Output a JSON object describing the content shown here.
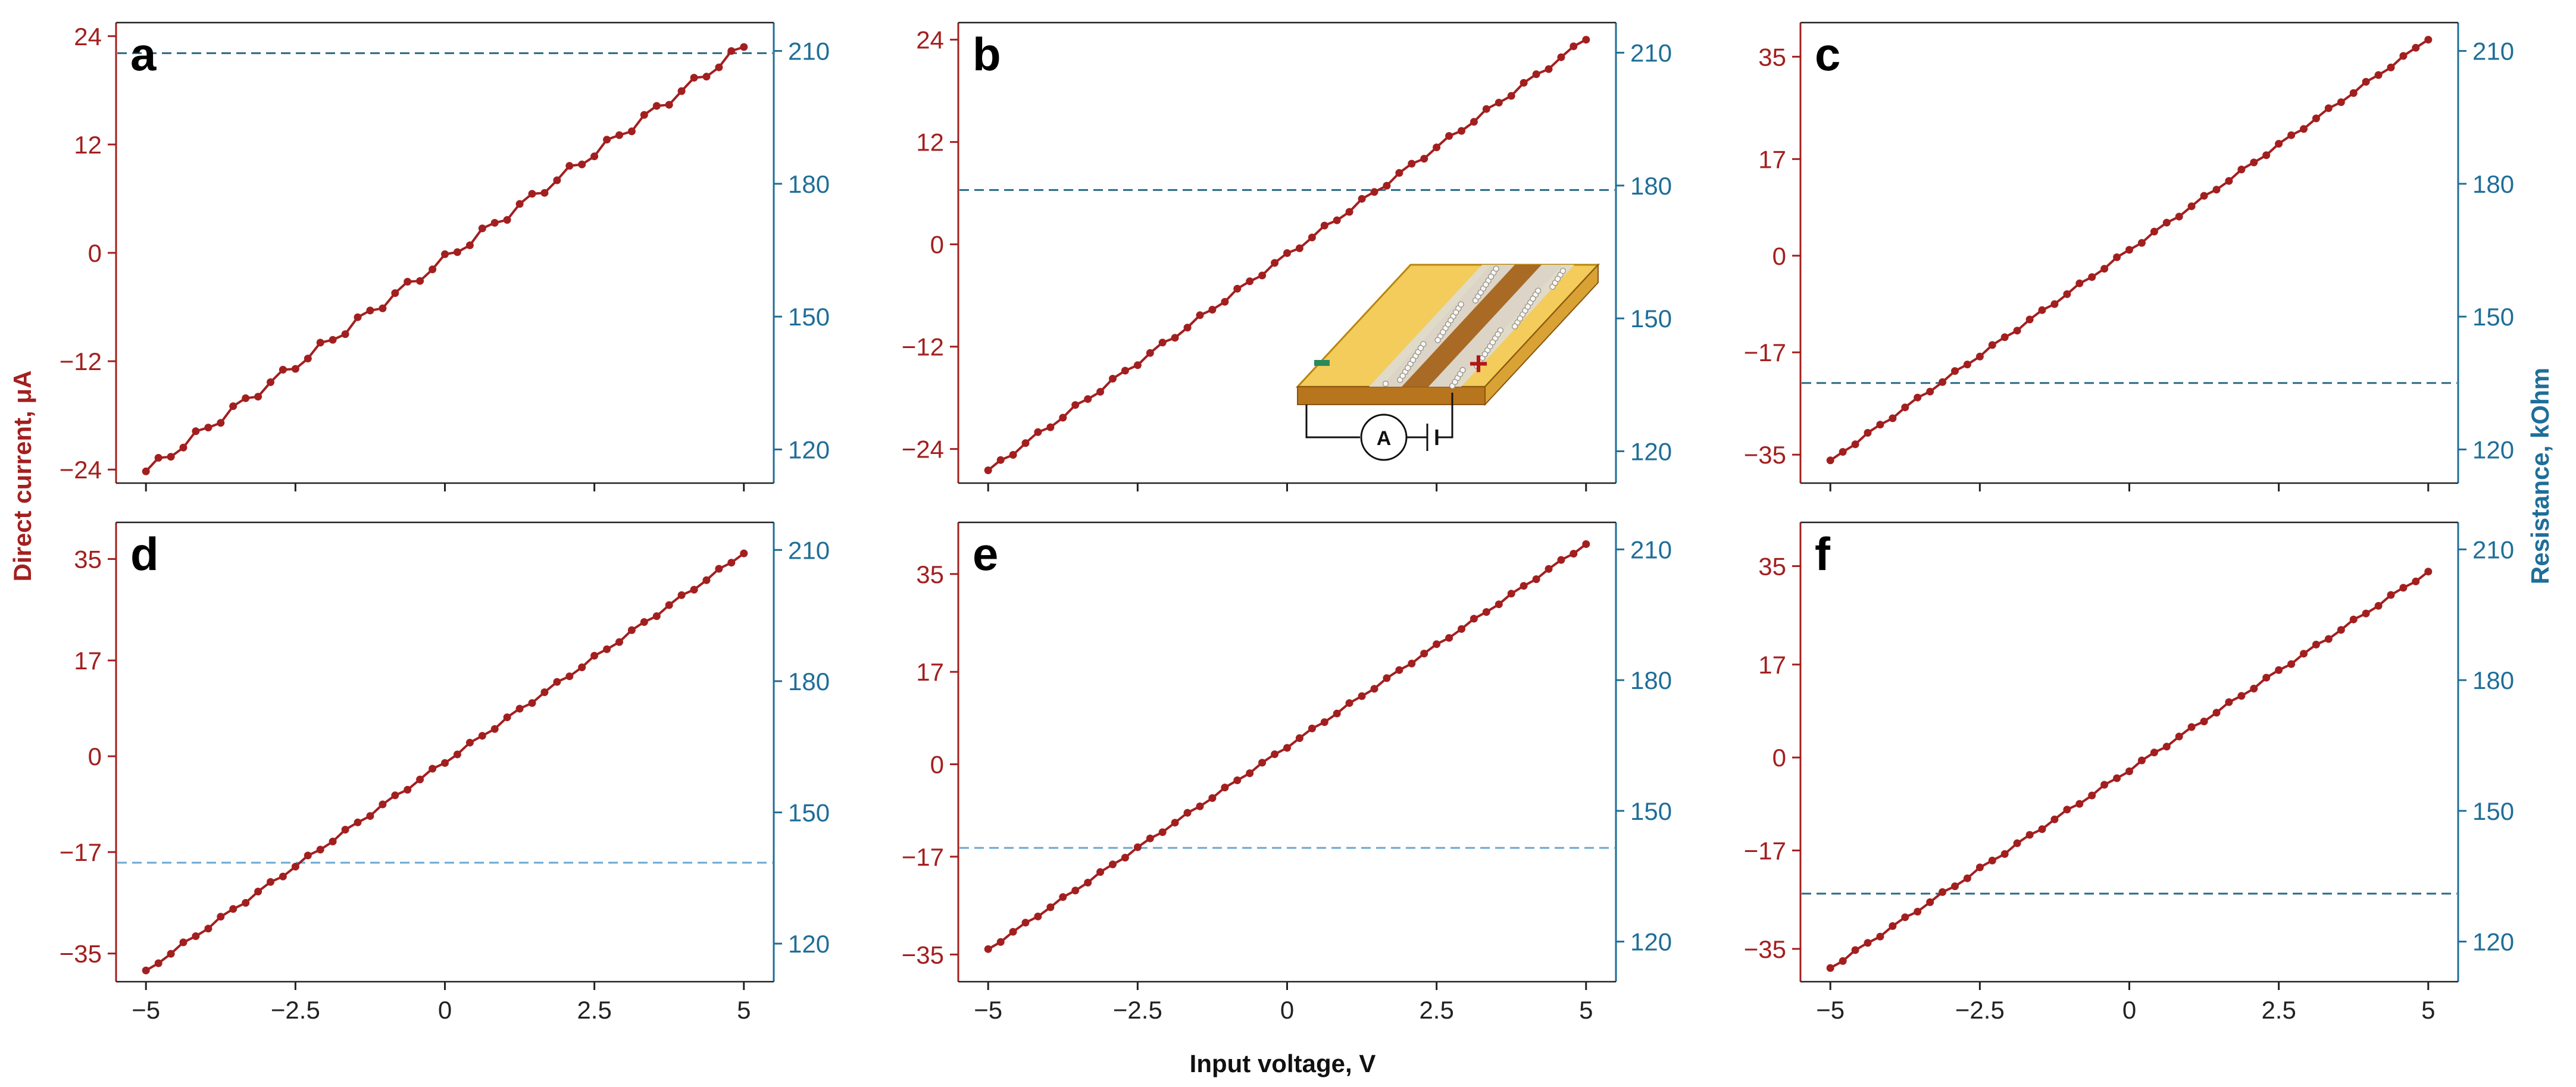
{
  "figure": {
    "left_axis_label": "Direct current, μA",
    "right_axis_label": "Resistance, kOhm",
    "x_axis_label": "Input voltage, V",
    "colors": {
      "current": "#a31f1f",
      "resistance": "#1f6e99",
      "dash_dark": "#2a6a86",
      "dash_light": "#6aa7d3"
    }
  },
  "chart_data": [
    {
      "panel": "a",
      "type": "line",
      "xlabel": "Input voltage, V",
      "ylabel": "Direct current, μA",
      "y2label": "Resistance, kOhm",
      "xlim": [
        -5.5,
        5.5
      ],
      "ylim": [
        -25.5,
        25.5
      ],
      "y2lim": [
        112.4,
        216.4
      ],
      "x_ticks": [
        -5,
        -2.5,
        0,
        2.5,
        5
      ],
      "x_tick_labels": [
        "−5",
        "−2.5",
        "0",
        "2.5",
        "5"
      ],
      "y_ticks": [
        -24,
        -12,
        0,
        12,
        24
      ],
      "y_tick_labels": [
        "−24",
        "−12",
        "0",
        "12",
        "24"
      ],
      "y2_ticks": [
        120,
        150,
        180,
        210
      ],
      "y2_tick_labels": [
        "120",
        "150",
        "180",
        "210"
      ],
      "show_x_tick_labels": false,
      "current": {
        "x_start": -5,
        "x_end": 5,
        "y_start": -24.2,
        "y_end": 22.8,
        "n": 49,
        "wobble": 0.55
      },
      "resistance_kohm": 209.5,
      "dash_style": "dark"
    },
    {
      "panel": "b",
      "type": "line",
      "xlabel": "Input voltage, V",
      "ylabel": "Direct current, μA",
      "y2label": "Resistance, kOhm",
      "xlim": [
        -5.5,
        5.5
      ],
      "ylim": [
        -28.0,
        26.0
      ],
      "y2lim": [
        112.8,
        216.8
      ],
      "x_ticks": [
        -5,
        -2.5,
        0,
        2.5,
        5
      ],
      "x_tick_labels": [
        "−5",
        "−2.5",
        "0",
        "2.5",
        "5"
      ],
      "y_ticks": [
        -24,
        -12,
        0,
        12,
        24
      ],
      "y_tick_labels": [
        "−24",
        "−12",
        "0",
        "12",
        "24"
      ],
      "y2_ticks": [
        120,
        150,
        180,
        210
      ],
      "y2_tick_labels": [
        "120",
        "150",
        "180",
        "210"
      ],
      "show_x_tick_labels": false,
      "current": {
        "x_start": -5,
        "x_end": 5,
        "y_start": -26.5,
        "y_end": 24.0,
        "n": 49,
        "wobble": 0.3
      },
      "resistance_kohm": 179.0,
      "dash_style": "dark",
      "inset": {
        "label_minus": "−",
        "label_plus": "+",
        "meter_label": "A"
      }
    },
    {
      "panel": "c",
      "type": "line",
      "xlabel": "Input voltage, V",
      "ylabel": "Direct current, μA",
      "y2label": "Resistance, kOhm",
      "xlim": [
        -5.5,
        5.5
      ],
      "ylim": [
        -40.0,
        41.0
      ],
      "y2lim": [
        112.4,
        216.4
      ],
      "x_ticks": [
        -5,
        -2.5,
        0,
        2.5,
        5
      ],
      "x_tick_labels": [
        "−5",
        "−2.5",
        "0",
        "2.5",
        "5"
      ],
      "y_ticks": [
        -35,
        -17,
        0,
        17,
        35
      ],
      "y_tick_labels": [
        "−35",
        "−17",
        "0",
        "17",
        "35"
      ],
      "y2_ticks": [
        120,
        150,
        180,
        210
      ],
      "y2_tick_labels": [
        "120",
        "150",
        "180",
        "210"
      ],
      "show_x_tick_labels": false,
      "current": {
        "x_start": -5,
        "x_end": 5,
        "y_start": -36.0,
        "y_end": 38.0,
        "n": 49,
        "wobble": 0.3
      },
      "resistance_kohm": 135.0,
      "dash_style": "dark"
    },
    {
      "panel": "d",
      "type": "line",
      "xlabel": "Input voltage, V",
      "ylabel": "Direct current, μA",
      "y2label": "Resistance, kOhm",
      "xlim": [
        -5.5,
        5.5
      ],
      "ylim": [
        -40.0,
        41.5
      ],
      "y2lim": [
        111.3,
        216.3
      ],
      "x_ticks": [
        -5,
        -2.5,
        0,
        2.5,
        5
      ],
      "x_tick_labels": [
        "−5",
        "−2.5",
        "0",
        "2.5",
        "5"
      ],
      "y_ticks": [
        -35,
        -17,
        0,
        17,
        35
      ],
      "y_tick_labels": [
        "−35",
        "−17",
        "0",
        "17",
        "35"
      ],
      "y2_ticks": [
        120,
        150,
        180,
        210
      ],
      "y2_tick_labels": [
        "120",
        "150",
        "180",
        "210"
      ],
      "show_x_tick_labels": true,
      "current": {
        "x_start": -5,
        "x_end": 5,
        "y_start": -38.0,
        "y_end": 36.0,
        "n": 49,
        "wobble": 0.35
      },
      "resistance_kohm": 138.5,
      "dash_style": "light"
    },
    {
      "panel": "e",
      "type": "line",
      "xlabel": "Input voltage, V",
      "ylabel": "Direct current, μA",
      "y2label": "Resistance, kOhm",
      "xlim": [
        -5.5,
        5.5
      ],
      "ylim": [
        -40.0,
        44.5
      ],
      "y2lim": [
        110.8,
        216.2
      ],
      "x_ticks": [
        -5,
        -2.5,
        0,
        2.5,
        5
      ],
      "x_tick_labels": [
        "−5",
        "−2.5",
        "0",
        "2.5",
        "5"
      ],
      "y_ticks": [
        -35,
        -17,
        0,
        17,
        35
      ],
      "y_tick_labels": [
        "−35",
        "−17",
        "0",
        "17",
        "35"
      ],
      "y2_ticks": [
        120,
        150,
        180,
        210
      ],
      "y2_tick_labels": [
        "120",
        "150",
        "180",
        "210"
      ],
      "show_x_tick_labels": true,
      "current": {
        "x_start": -5,
        "x_end": 5,
        "y_start": -34.0,
        "y_end": 40.5,
        "n": 49,
        "wobble": 0.25
      },
      "resistance_kohm": 141.5,
      "dash_style": "light"
    },
    {
      "panel": "f",
      "type": "line",
      "xlabel": "Input voltage, V",
      "ylabel": "Direct current, μA",
      "y2label": "Resistance, kOhm",
      "xlim": [
        -5.5,
        5.5
      ],
      "ylim": [
        -41.0,
        43.0
      ],
      "y2lim": [
        110.8,
        216.2
      ],
      "x_ticks": [
        -5,
        -2.5,
        0,
        2.5,
        5
      ],
      "x_tick_labels": [
        "−5",
        "−2.5",
        "0",
        "2.5",
        "5"
      ],
      "y_ticks": [
        -35,
        -17,
        0,
        17,
        35
      ],
      "y_tick_labels": [
        "−35",
        "−17",
        "0",
        "17",
        "35"
      ],
      "y2_ticks": [
        120,
        150,
        180,
        210
      ],
      "y2_tick_labels": [
        "120",
        "150",
        "180",
        "210"
      ],
      "show_x_tick_labels": true,
      "current": {
        "x_start": -5,
        "x_end": 5,
        "y_start": -38.5,
        "y_end": 34.0,
        "n": 49,
        "wobble": 0.3
      },
      "resistance_kohm": 131.0,
      "dash_style": "dark"
    }
  ]
}
